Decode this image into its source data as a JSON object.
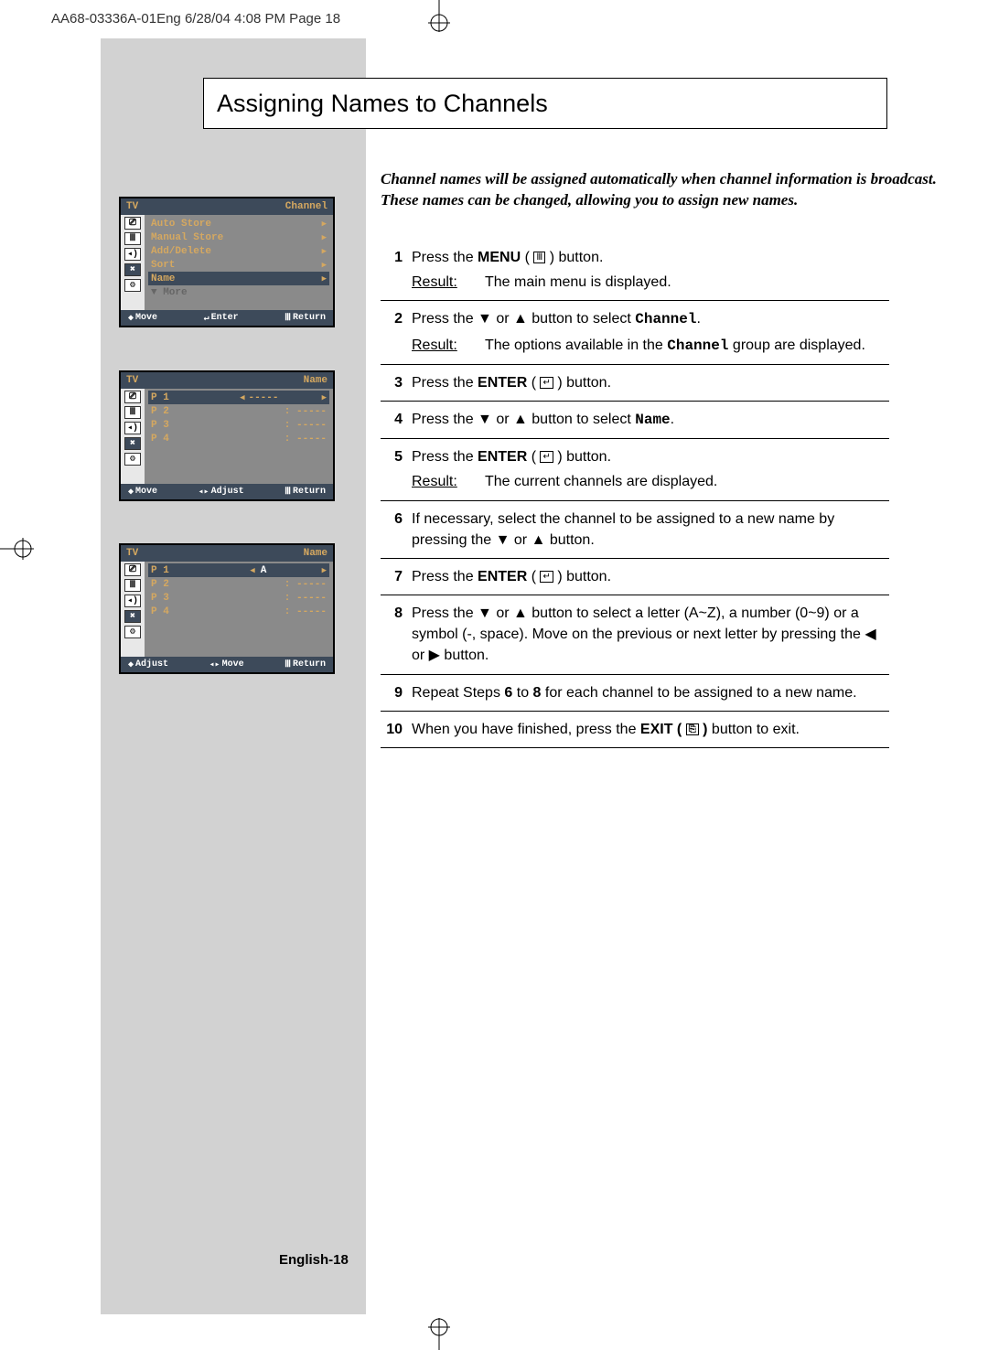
{
  "page_header": "AA68-03336A-01Eng  6/28/04  4:08 PM  Page 18",
  "title": "Assigning Names to Channels",
  "intro": "Channel names will be assigned automatically when channel information is broadcast. These names can be changed, allowing you to assign new names.",
  "page_footer": "English-18",
  "osd1": {
    "tv": "TV",
    "label": "Channel",
    "items": [
      {
        "text": "Auto Store",
        "arrow": true
      },
      {
        "text": "Manual Store",
        "arrow": true
      },
      {
        "text": "Add/Delete",
        "arrow": true
      },
      {
        "text": "Sort",
        "arrow": true
      },
      {
        "text": "Name",
        "sel": true,
        "arrow": true
      },
      {
        "text": "▼ More",
        "dim": true
      }
    ],
    "footer": {
      "left": "Move",
      "mid": "Enter",
      "right": "Return"
    }
  },
  "osd2": {
    "tv": "TV",
    "label": "Name",
    "items": [
      {
        "p": "P  1",
        "val": "-----",
        "sel": true,
        "arrows": true
      },
      {
        "p": "P  2",
        "val": ": -----"
      },
      {
        "p": "P  3",
        "val": ": -----"
      },
      {
        "p": "P  4",
        "val": ": -----"
      }
    ],
    "footer": {
      "left": "Move",
      "mid": "Adjust",
      "right": "Return"
    }
  },
  "osd3": {
    "tv": "TV",
    "label": "Name",
    "items": [
      {
        "p": "P  1",
        "val": "A",
        "sel": true,
        "arrows": true
      },
      {
        "p": "P  2",
        "val": ": -----"
      },
      {
        "p": "P  3",
        "val": ": -----"
      },
      {
        "p": "P  4",
        "val": ": -----"
      }
    ],
    "footer": {
      "left": "Adjust",
      "mid": "Move",
      "right": "Return"
    }
  },
  "steps": [
    {
      "num": "1",
      "lines": [
        "Press the <b>MENU</b> ( <span class='menu-icon'>Ⅲ</span> ) button."
      ],
      "result": "The main menu is displayed."
    },
    {
      "num": "2",
      "lines": [
        "Press the ▼ or ▲ button to select <span class='mono'>Channel</span>."
      ],
      "result": "The options available in the <span class='mono'>Channel</span> group are displayed."
    },
    {
      "num": "3",
      "lines": [
        "Press the <b>ENTER</b> ( <span class='enter-icon'>↵</span> ) button."
      ]
    },
    {
      "num": "4",
      "lines": [
        "Press the ▼ or ▲ button to select <span class='mono'>Name</span>."
      ]
    },
    {
      "num": "5",
      "lines": [
        "Press the <b>ENTER</b> ( <span class='enter-icon'>↵</span> ) button."
      ],
      "result": "The current channels are displayed."
    },
    {
      "num": "6",
      "lines": [
        "If necessary, select the channel to be assigned to a new name by pressing the ▼ or ▲ button."
      ]
    },
    {
      "num": "7",
      "lines": [
        "Press the <b>ENTER</b> ( <span class='enter-icon'>↵</span> ) button."
      ]
    },
    {
      "num": "8",
      "lines": [
        "Press the ▼ or ▲ button to select a letter (A~Z), a number (0~9) or a symbol (-, space).  Move on the previous or next letter by pressing the ◀ or ▶ button."
      ]
    },
    {
      "num": "9",
      "lines": [
        "Repeat Steps <b>6</b> to <b>8</b> for each channel to be assigned to a new name."
      ]
    },
    {
      "num": "10",
      "lines": [
        "When you have finished, press the <b>EXIT ( <span class='exit-icon'>⎘</span> )</b> button to exit."
      ]
    }
  ],
  "result_label": "Result",
  "icons": [
    "⎚",
    "Ⅲ",
    "◂))",
    "✖",
    "⚙"
  ]
}
